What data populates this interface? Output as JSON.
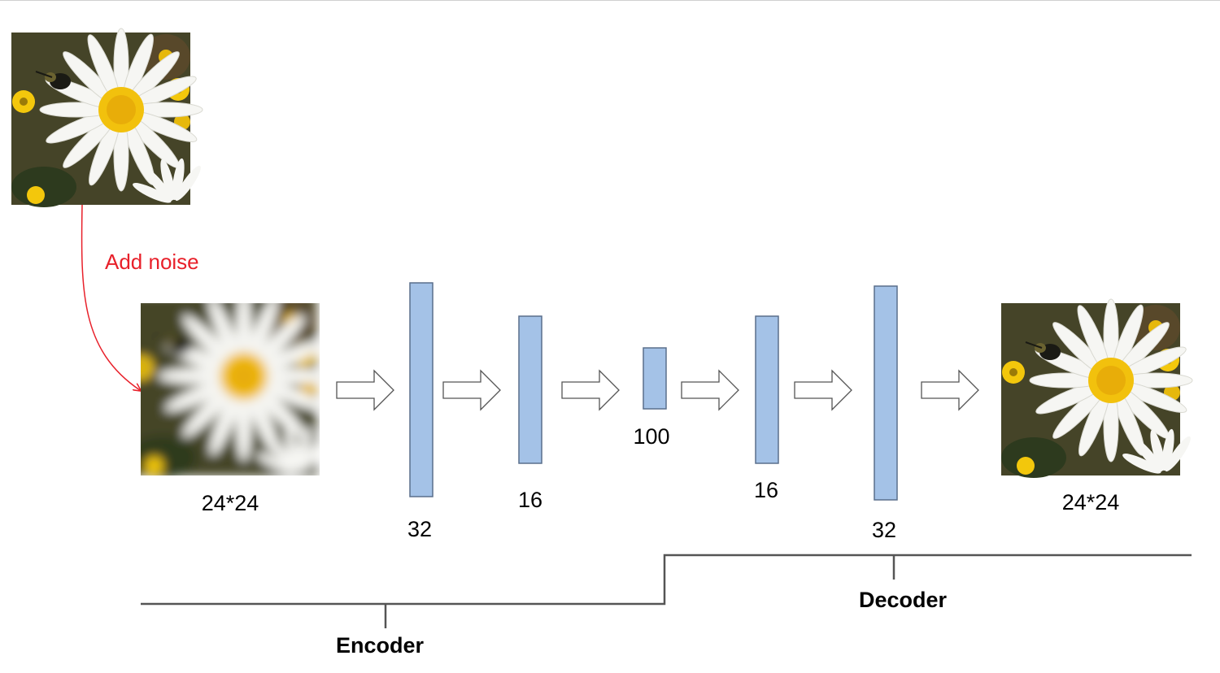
{
  "noise_label": "Add noise",
  "input_size_label": "24*24",
  "output_size_label": "24*24",
  "layers": [
    {
      "label": "32"
    },
    {
      "label": "16"
    },
    {
      "label": "100"
    },
    {
      "label": "16"
    },
    {
      "label": "32"
    }
  ],
  "encoder_label": "Encoder",
  "decoder_label": "Decoder",
  "colors": {
    "layer_fill": "#a4c2e7",
    "layer_stroke": "#5a6f8c",
    "noise_arrow": "#e8202a",
    "bracket": "#555555"
  }
}
